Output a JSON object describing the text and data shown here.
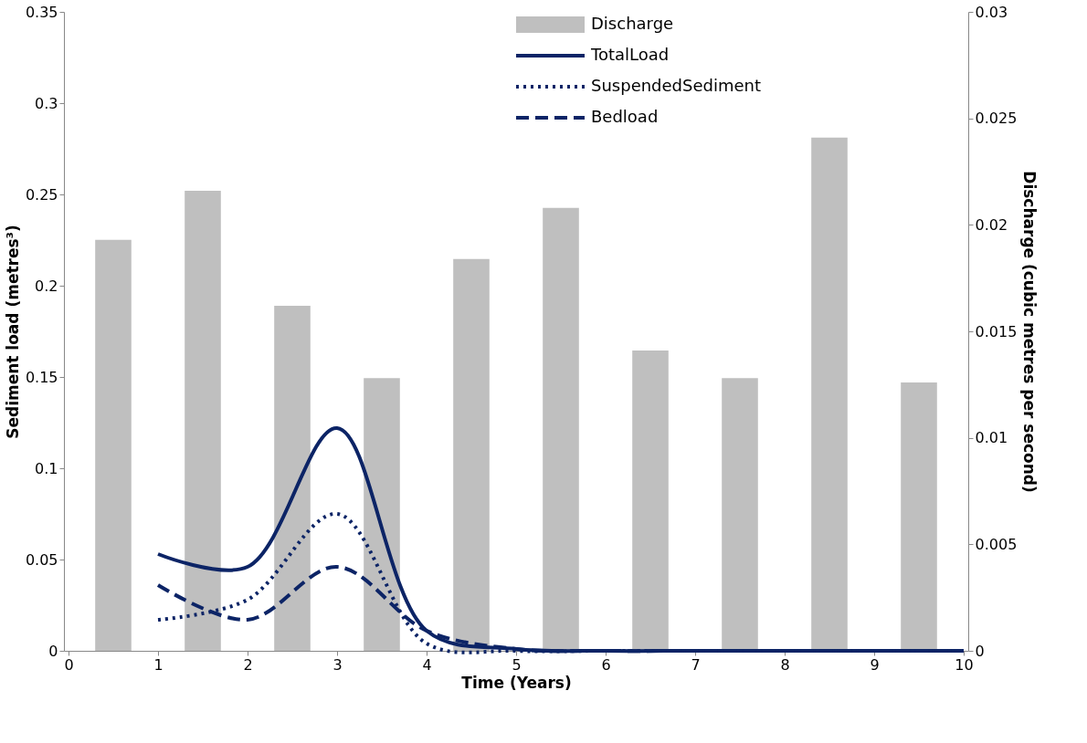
{
  "chart_data": {
    "type": "line",
    "xlabel": "Time (Years)",
    "ylabel": "Sediment load (metres³)",
    "y2label": "Discharge (cubic metres per second)",
    "xlim": [
      0,
      10
    ],
    "xticks": [
      0,
      1,
      2,
      3,
      4,
      5,
      6,
      7,
      8,
      9,
      10
    ],
    "ylim": [
      0,
      0.35
    ],
    "yticks": [
      0,
      0.05,
      0.1,
      0.15,
      0.2,
      0.25,
      0.3,
      0.35
    ],
    "y2lim": [
      0,
      0.03
    ],
    "y2ticks": [
      0,
      0.005,
      0.01,
      0.015,
      0.02,
      0.025,
      0.03
    ],
    "grid": false,
    "legend": "top",
    "marker": "none",
    "series": [
      {
        "name": "Discharge",
        "type": "bar",
        "axis": "y2",
        "color": "#bfbfbf",
        "x": [
          0.5,
          1.5,
          2.5,
          3.5,
          4.5,
          5.5,
          6.5,
          7.5,
          8.5,
          9.5
        ],
        "values": [
          0.0193,
          0.0216,
          0.0162,
          0.0128,
          0.0184,
          0.0208,
          0.0141,
          0.0128,
          0.0241,
          0.0126
        ]
      },
      {
        "name": "TotalLoad",
        "line_style": "solid",
        "color": "#0c2466",
        "x": [
          1,
          2,
          3,
          4,
          5,
          6,
          7,
          8,
          9,
          10
        ],
        "values": [
          0.053,
          0.046,
          0.122,
          0.011,
          0.001,
          0,
          0,
          0,
          0,
          0
        ]
      },
      {
        "name": "SuspendedSediment",
        "line_style": "dotted",
        "color": "#0c2466",
        "x": [
          1,
          2,
          3,
          4,
          5,
          6,
          7,
          8,
          9,
          10
        ],
        "values": [
          0.017,
          0.028,
          0.075,
          0.004,
          0,
          0,
          0,
          0,
          0,
          0
        ]
      },
      {
        "name": "Bedload",
        "line_style": "dashed",
        "color": "#0c2466",
        "x": [
          1,
          2,
          3,
          4,
          5,
          6,
          7,
          8,
          9,
          10
        ],
        "values": [
          0.036,
          0.017,
          0.046,
          0.011,
          0.001,
          0,
          0,
          0,
          0,
          0
        ]
      }
    ]
  }
}
